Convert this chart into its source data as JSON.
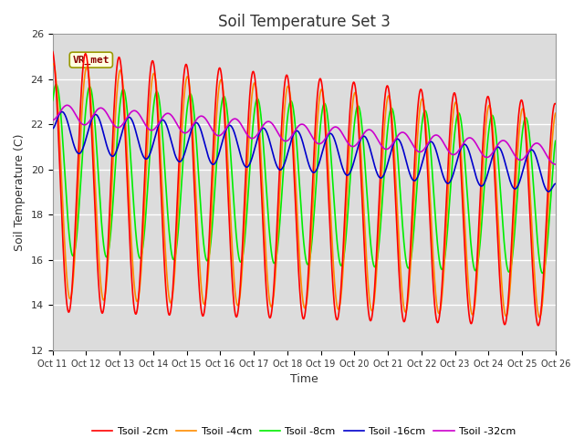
{
  "title": "Soil Temperature Set 3",
  "xlabel": "Time",
  "ylabel": "Soil Temperature (C)",
  "ylim": [
    12,
    26
  ],
  "xlim": [
    0,
    15
  ],
  "xtick_labels": [
    "Oct 11",
    "Oct 12",
    "Oct 13",
    "Oct 14",
    "Oct 15",
    "Oct 16",
    "Oct 17",
    "Oct 18",
    "Oct 19",
    "Oct 20",
    "Oct 21",
    "Oct 22",
    "Oct 23",
    "Oct 24",
    "Oct 25",
    "Oct 26"
  ],
  "ytick_values": [
    12,
    14,
    16,
    18,
    20,
    22,
    24,
    26
  ],
  "legend_labels": [
    "Tsoil -2cm",
    "Tsoil -4cm",
    "Tsoil -8cm",
    "Tsoil -16cm",
    "Tsoil -32cm"
  ],
  "line_colors": [
    "#ff0000",
    "#ff8c00",
    "#00ee00",
    "#0000cc",
    "#cc00cc"
  ],
  "annotation_text": "VR_met",
  "plot_bg_color": "#dcdcdc",
  "title_fontsize": 12,
  "label_fontsize": 9,
  "tick_fontsize": 8
}
